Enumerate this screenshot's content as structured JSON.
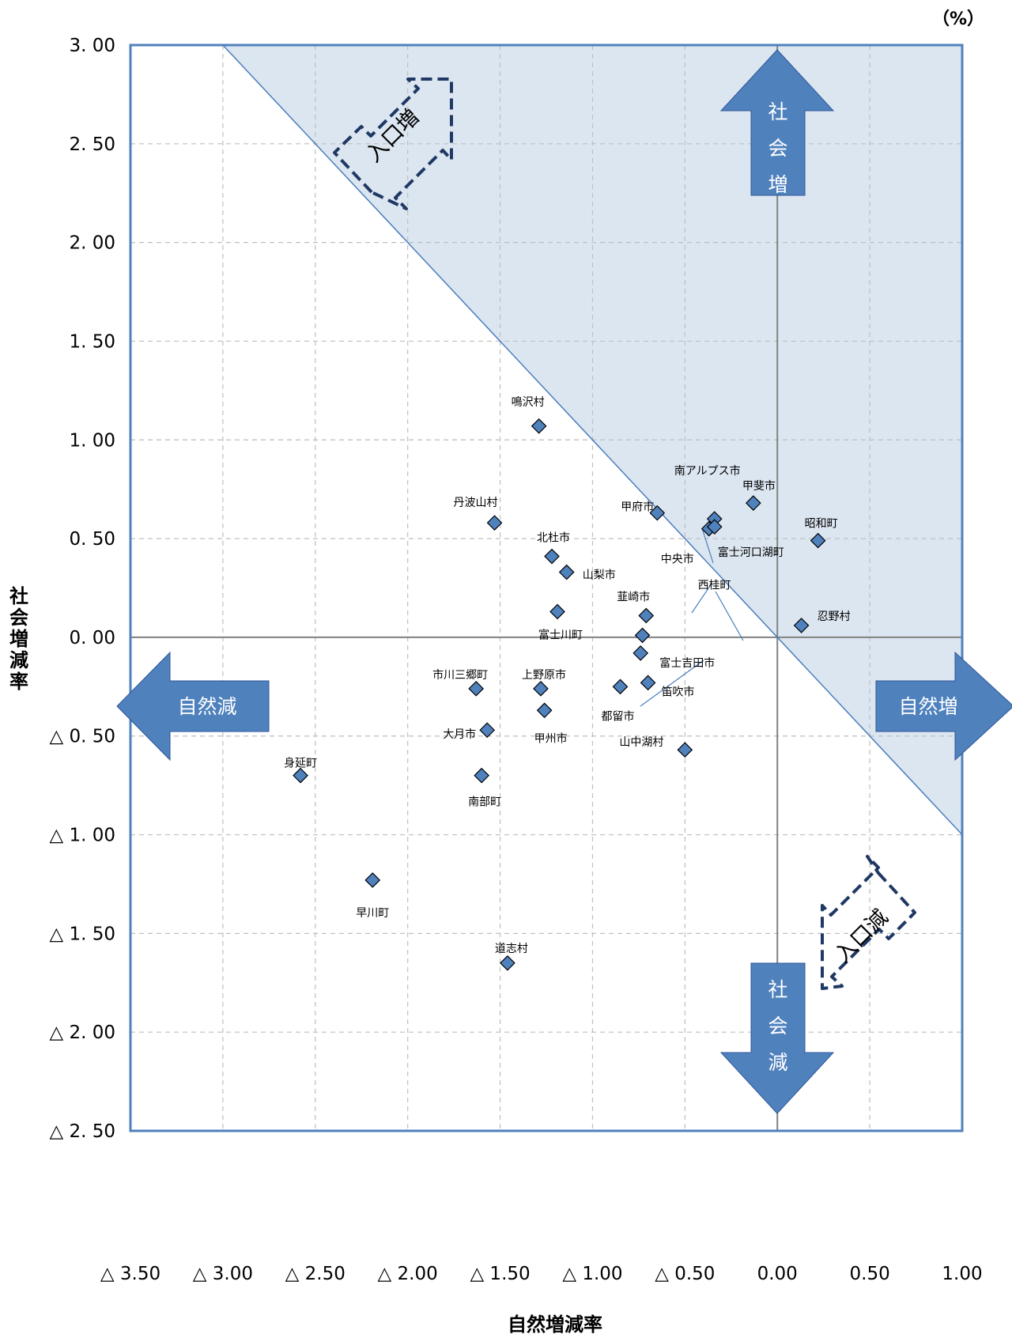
{
  "chart_data": {
    "type": "scatter",
    "unit": "（%）",
    "xlabel": "自然増減率",
    "ylabel": "社会増減率",
    "xlim": [
      -3.5,
      1.0
    ],
    "ylim": [
      -2.5,
      3.0
    ],
    "grid": true,
    "x_ticks": [
      {
        "value": -3.5,
        "label": "△ 3.50"
      },
      {
        "value": -3.0,
        "label": "△ 3.00"
      },
      {
        "value": -2.5,
        "label": "△ 2.50"
      },
      {
        "value": -2.0,
        "label": "△ 2.00"
      },
      {
        "value": -1.5,
        "label": "△ 1.50"
      },
      {
        "value": -1.0,
        "label": "△ 1.00"
      },
      {
        "value": -0.5,
        "label": "△ 0.50"
      },
      {
        "value": 0.0,
        "label": "0.00"
      },
      {
        "value": 0.5,
        "label": "0.50"
      },
      {
        "value": 1.0,
        "label": "1.00"
      }
    ],
    "y_ticks": [
      {
        "value": 3.0,
        "label": "3. 00"
      },
      {
        "value": 2.5,
        "label": "2. 50"
      },
      {
        "value": 2.0,
        "label": "2. 00"
      },
      {
        "value": 1.5,
        "label": "1. 50"
      },
      {
        "value": 1.0,
        "label": "1. 00"
      },
      {
        "value": 0.5,
        "label": "0. 50"
      },
      {
        "value": 0.0,
        "label": "0. 00"
      },
      {
        "value": -0.5,
        "label": "△ 0. 50"
      },
      {
        "value": -1.0,
        "label": "△ 1. 00"
      },
      {
        "value": -1.5,
        "label": "△ 1. 50"
      },
      {
        "value": -2.0,
        "label": "△ 2. 00"
      },
      {
        "value": -2.5,
        "label": "△ 2. 50"
      }
    ],
    "points": [
      {
        "name": "鳴沢村",
        "x": -1.29,
        "y": 1.07
      },
      {
        "name": "南アルプス市",
        "x": -0.34,
        "y": 0.6
      },
      {
        "name": "甲斐市",
        "x": -0.13,
        "y": 0.68
      },
      {
        "name": "甲府市",
        "x": -0.65,
        "y": 0.63
      },
      {
        "name": "丹波山村",
        "x": -1.53,
        "y": 0.58
      },
      {
        "name": "昭和町",
        "x": 0.22,
        "y": 0.49
      },
      {
        "name": "北杜市",
        "x": -1.22,
        "y": 0.41
      },
      {
        "name": "中央市",
        "x": -0.37,
        "y": 0.55
      },
      {
        "name": "富士河口湖町",
        "x": -0.34,
        "y": 0.56
      },
      {
        "name": "山梨市",
        "x": -1.14,
        "y": 0.33
      },
      {
        "name": "西桂町",
        "x": -0.73,
        "y": 0.01
      },
      {
        "name": "韮崎市",
        "x": -0.71,
        "y": 0.11
      },
      {
        "name": "忍野村",
        "x": 0.13,
        "y": 0.06
      },
      {
        "name": "富士川町",
        "x": -1.19,
        "y": 0.13
      },
      {
        "name": "富士吉田市",
        "x": -0.74,
        "y": -0.08
      },
      {
        "name": "市川三郷町",
        "x": -1.63,
        "y": -0.26
      },
      {
        "name": "上野原市",
        "x": -1.28,
        "y": -0.26
      },
      {
        "name": "笛吹市",
        "x": -0.7,
        "y": -0.23
      },
      {
        "name": "都留市",
        "x": -0.85,
        "y": -0.25
      },
      {
        "name": "甲州市",
        "x": -1.26,
        "y": -0.37
      },
      {
        "name": "大月市",
        "x": -1.57,
        "y": -0.47
      },
      {
        "name": "山中湖村",
        "x": -0.5,
        "y": -0.57
      },
      {
        "name": "身延町",
        "x": -2.58,
        "y": -0.7
      },
      {
        "name": "南部町",
        "x": -1.6,
        "y": -0.7
      },
      {
        "name": "早川町",
        "x": -2.19,
        "y": -1.23
      },
      {
        "name": "道志村",
        "x": -1.46,
        "y": -1.65
      }
    ],
    "reference_line": {
      "description": "x + y = 0"
    },
    "annotations": {
      "social_increase": "社会増",
      "social_decrease": "社会減",
      "natural_increase": "自然増",
      "natural_decrease": "自然減",
      "pop_increase": "入口増",
      "pop_decrease": "入口減"
    },
    "colors": {
      "marker": "#4f81bd",
      "marker_edge": "#000000",
      "arrow": "#4f81bd",
      "shade": "#dce6f1",
      "diag_line": "#4a7ebb",
      "plot_border": "#4f81bd",
      "dashed_arrow": "#1f3864"
    }
  }
}
